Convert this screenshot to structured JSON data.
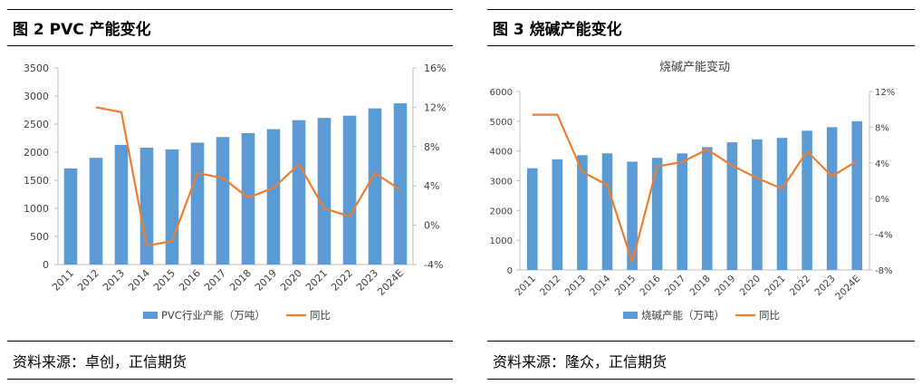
{
  "left_panel": {
    "figure_title": "图 2 PVC 产能变化",
    "source": "资料来源：卓创，正信期货"
  },
  "right_panel": {
    "figure_title": "图 3   烧碱产能变化",
    "source": "资料来源：隆众，正信期货"
  },
  "colors": {
    "bar": "#5B9BD5",
    "line": "#ED7D31",
    "axis": "#BFBFBF"
  },
  "chart_data": [
    {
      "type": "bar",
      "title": "",
      "categories": [
        "2011",
        "2012",
        "2013",
        "2014",
        "2015",
        "2016",
        "2017",
        "2018",
        "2019",
        "2020",
        "2021",
        "2022",
        "2023",
        "2024E"
      ],
      "series": [
        {
          "name": "PVC行业产能（万吨）",
          "type": "bar",
          "axis": "left",
          "values": [
            1710,
            1900,
            2130,
            2080,
            2050,
            2170,
            2270,
            2340,
            2410,
            2570,
            2610,
            2650,
            2780,
            2870
          ]
        },
        {
          "name": "同比",
          "type": "line",
          "axis": "right",
          "values": [
            null,
            12.0,
            11.5,
            -2.1,
            -1.6,
            5.3,
            4.8,
            2.8,
            3.8,
            6.2,
            1.7,
            0.9,
            5.3,
            3.6
          ]
        }
      ],
      "y_left": {
        "min": 0,
        "max": 3500,
        "ticks": [
          "0",
          "500",
          "1000",
          "1500",
          "2000",
          "2500",
          "3000",
          "3500"
        ]
      },
      "y_right": {
        "min": -4,
        "max": 16,
        "ticks": [
          "-4%",
          "0%",
          "4%",
          "8%",
          "12%",
          "16%"
        ]
      },
      "legend_position": "bottom",
      "grid": false
    },
    {
      "type": "bar",
      "title": "烧碱产能变动",
      "categories": [
        "2011",
        "2012",
        "2013",
        "2014",
        "2015",
        "2016",
        "2017",
        "2018",
        "2019",
        "2020",
        "2021",
        "2022",
        "2023",
        "2024E"
      ],
      "series": [
        {
          "name": "烧碱产能（万吨）",
          "type": "bar",
          "axis": "left",
          "values": [
            3420,
            3720,
            3860,
            3920,
            3640,
            3770,
            3920,
            4130,
            4290,
            4390,
            4440,
            4680,
            4800,
            5000
          ]
        },
        {
          "name": "同比",
          "type": "line",
          "axis": "right",
          "values": [
            9.4,
            9.4,
            3.0,
            1.5,
            -7.1,
            3.6,
            4.1,
            5.5,
            3.7,
            2.3,
            1.1,
            5.3,
            2.5,
            4.2
          ]
        }
      ],
      "y_left": {
        "min": 0,
        "max": 6000,
        "ticks": [
          "0",
          "1000",
          "2000",
          "3000",
          "4000",
          "5000",
          "6000"
        ]
      },
      "y_right": {
        "min": -8,
        "max": 12,
        "ticks": [
          "-8%",
          "-4%",
          "0%",
          "4%",
          "8%",
          "12%"
        ]
      },
      "legend_position": "bottom",
      "grid": false
    }
  ]
}
